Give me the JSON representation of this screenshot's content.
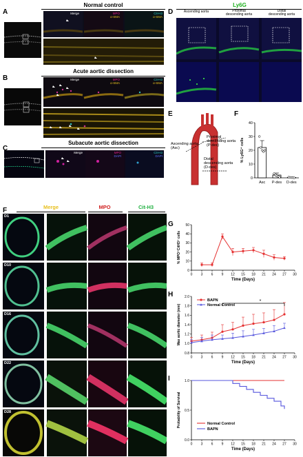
{
  "panels": {
    "A": {
      "letter": "A",
      "title": "Normal control",
      "labels": [
        [
          "Merge"
        ],
        [
          "MPO",
          "α-SMA"
        ],
        [
          "Cit-H3",
          "α-SMA"
        ]
      ]
    },
    "B": {
      "letter": "B",
      "title": "Acute aortic dissection",
      "labels": [
        [
          "Merge"
        ],
        [
          "MPO",
          "α-SMA"
        ],
        [
          "Cit-H3",
          "α-SMA"
        ]
      ]
    },
    "C": {
      "letter": "C",
      "title": "Subacute aortic dissection",
      "labels": [
        [
          "Merge"
        ],
        [
          "MPO",
          "DAPI"
        ],
        [
          "Cit-H3",
          "DAPI"
        ]
      ]
    },
    "D": {
      "letter": "D",
      "title": "Ly6G",
      "cols": [
        "Ascending aorta",
        "Proximal\ndescending aorta",
        "Distal\ndescending aorta"
      ]
    },
    "E": {
      "letter": "E",
      "asc": "Ascending aorta\n(Asc)",
      "pdes": "Proximal\ndescending aorta\n(P-des)",
      "ddes": "Distal\ndescending aorta\n(D-des)"
    },
    "F_left": {
      "letter": "F",
      "heads": [
        "Merge",
        "MPO",
        "Cit-H3"
      ],
      "days": [
        "D1",
        "D10",
        "D16",
        "D22",
        "D28"
      ]
    },
    "colors": {
      "mpo": "#e0208a",
      "cith3": "#29d4c8",
      "asma": "#e8c020",
      "dapi": "#3050ff",
      "ly6g": "#20c020",
      "merge": "#e8c020",
      "red": "#e53030",
      "blue": "#5555dd"
    }
  },
  "chart_data": [
    {
      "id": "F",
      "type": "bar",
      "letter": "F",
      "categories": [
        "Asc",
        "P-des",
        "D-des"
      ],
      "values": [
        22,
        2,
        0.3
      ],
      "errors": [
        5,
        1.5,
        0.4
      ],
      "points": [
        [
          30,
          22,
          20,
          19,
          20
        ],
        [
          3,
          2,
          1.5,
          1,
          0.5
        ],
        [
          0.5,
          0.3,
          0.2,
          0.1,
          0
        ]
      ],
      "ylabel": "% Ly6G⁺ cells",
      "ylim": [
        0,
        40
      ],
      "yticks": [
        0,
        10,
        20,
        30,
        40
      ]
    },
    {
      "id": "G",
      "type": "line",
      "letter": "G",
      "x": [
        3,
        6,
        9,
        12,
        15,
        18,
        21,
        24,
        27
      ],
      "values": [
        6,
        6,
        37,
        20,
        21,
        22,
        18,
        14,
        13
      ],
      "errors": [
        2,
        2,
        3,
        4,
        3,
        3,
        4,
        3,
        2
      ],
      "ylabel": "% MPO⁺CitH3⁺ cells",
      "xlabel": "Time (Days)",
      "xlim": [
        0,
        30
      ],
      "ylim": [
        0,
        50
      ],
      "yticks": [
        0,
        10,
        20,
        30,
        40,
        50
      ],
      "xticks": [
        0,
        3,
        6,
        9,
        12,
        15,
        18,
        21,
        24,
        27,
        30
      ]
    },
    {
      "id": "H",
      "type": "line",
      "letter": "H",
      "x": [
        0,
        3,
        6,
        9,
        12,
        15,
        18,
        21,
        24,
        27
      ],
      "series": [
        {
          "name": "BAPN",
          "values": [
            1.05,
            1.08,
            1.12,
            1.25,
            1.3,
            1.38,
            1.42,
            1.45,
            1.5,
            1.62
          ],
          "errors": [
            0.08,
            0.1,
            0.12,
            0.15,
            0.15,
            0.18,
            0.2,
            0.2,
            0.22,
            0.25
          ]
        },
        {
          "name": "Normal Control",
          "values": [
            1.02,
            1.05,
            1.08,
            1.1,
            1.12,
            1.15,
            1.18,
            1.22,
            1.26,
            1.33
          ],
          "errors": [
            0.06,
            0.08,
            0.1,
            0.08,
            0.1,
            0.12,
            0.12,
            0.1,
            0.12,
            0.1
          ]
        }
      ],
      "annotation": "*",
      "ylabel": "Max aortic diameter (mm)",
      "xlabel": "Time (Days)",
      "xlim": [
        0,
        30
      ],
      "ylim": [
        0.8,
        2.0
      ],
      "yticks": [
        0.8,
        1.0,
        1.2,
        1.4,
        1.6,
        1.8,
        2.0
      ],
      "xticks": [
        0,
        3,
        6,
        9,
        12,
        15,
        18,
        21,
        24,
        27,
        30
      ]
    },
    {
      "id": "I",
      "type": "line",
      "letter": "I",
      "series": [
        {
          "name": "Normal Control",
          "x": [
            0,
            27
          ],
          "values": [
            1.0,
            1.0
          ]
        },
        {
          "name": "BAPN",
          "x": [
            0,
            10,
            12,
            14,
            16,
            18,
            20,
            22,
            24,
            26,
            27
          ],
          "values": [
            1.0,
            1.0,
            0.95,
            0.9,
            0.85,
            0.8,
            0.75,
            0.7,
            0.65,
            0.57,
            0.52
          ]
        }
      ],
      "ylabel": "Probability of Survival",
      "xlabel": "Time (Days)",
      "xlim": [
        0,
        30
      ],
      "ylim": [
        0,
        1.0
      ],
      "yticks": [
        0.0,
        0.5,
        1.0
      ],
      "xticks": [
        0,
        3,
        6,
        9,
        12,
        15,
        18,
        21,
        24,
        27,
        30
      ]
    }
  ]
}
